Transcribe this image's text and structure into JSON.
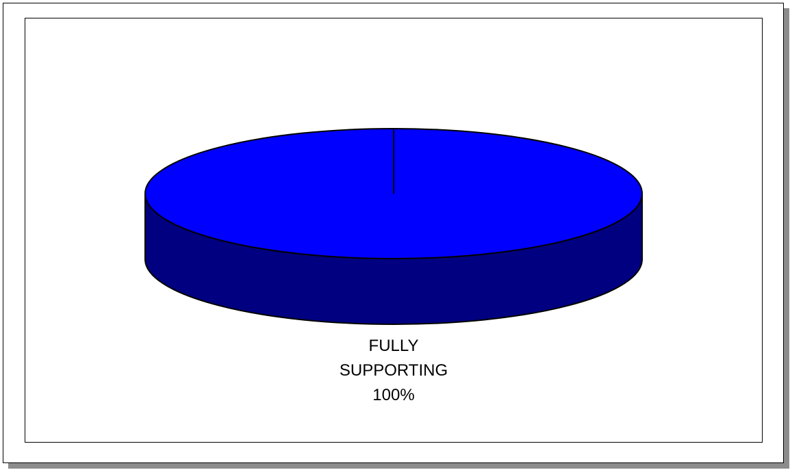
{
  "chart_data": {
    "type": "pie",
    "style": "3d",
    "title": "",
    "slices": [
      {
        "label_lines": [
          "FULLY",
          "SUPPORTING"
        ],
        "value_label": "100%",
        "value": 100,
        "color_top": "#0000ff",
        "color_side": "#000080"
      }
    ],
    "legend": "none"
  }
}
